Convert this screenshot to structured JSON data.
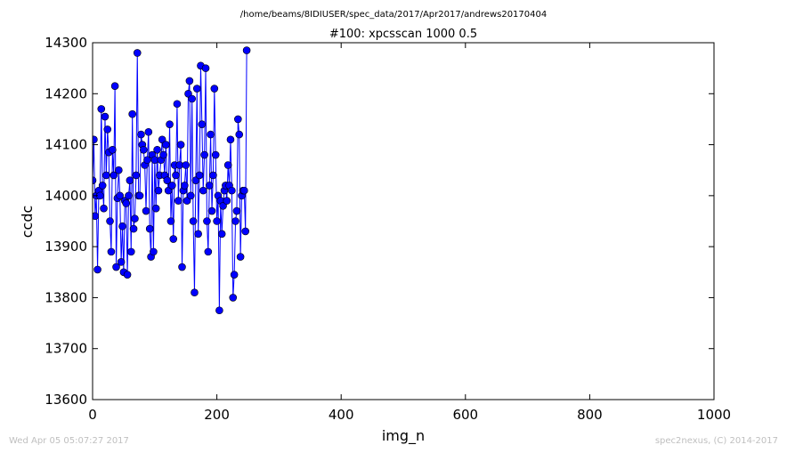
{
  "header": {
    "path": "/home/beams/8IDIUSER/spec_data/2017/Apr2017/andrews20170404"
  },
  "footer": {
    "timestamp": "Wed Apr 05 05:07:27 2017",
    "credit": "spec2nexus, (C) 2014-2017"
  },
  "colors": {
    "line": "#0000ff",
    "marker": "#0000ff",
    "background": "#ffffff"
  },
  "chart_data": {
    "type": "line",
    "title": "#100: xpcsscan 1000 0.5",
    "xlabel": "img_n",
    "ylabel": "ccdc",
    "xlim": [
      0,
      1000
    ],
    "ylim": [
      13600,
      14300
    ],
    "xticks": [
      "0",
      "200",
      "400",
      "600",
      "800",
      "1000"
    ],
    "yticks": [
      "13600",
      "13700",
      "13800",
      "13900",
      "14000",
      "14100",
      "14200",
      "14300"
    ],
    "grid": false,
    "marker": "circle",
    "series": [
      {
        "x_start": 0,
        "x_step": 2,
        "values": [
          14030,
          14110,
          13960,
          14000,
          13855,
          14010,
          14000,
          14170,
          14020,
          13975,
          14155,
          14040,
          14130,
          14085,
          13950,
          13890,
          14090,
          14040,
          14215,
          13860,
          13995,
          14050,
          14000,
          13870,
          13940,
          13850,
          13990,
          13985,
          13845,
          14000,
          14030,
          13890,
          14160,
          13935,
          13955,
          14040,
          14280,
          14000,
          14000,
          14120,
          14100,
          14090,
          14060,
          13970,
          14070,
          14125,
          13935,
          13880,
          14080,
          13890,
          14070,
          13975,
          14090,
          14010,
          14040,
          14070,
          14110,
          14080,
          14040,
          14100,
          14030,
          14010,
          14140,
          13950,
          14020,
          13915,
          14060,
          14040,
          14180,
          13990,
          14060,
          14100,
          13860,
          14010,
          14020,
          14060,
          13990,
          14200,
          14225,
          14000,
          14190,
          13950,
          13810,
          14030,
          14210,
          13925,
          14040,
          14255,
          14140,
          14010,
          14080,
          14250,
          13950,
          13890,
          14020,
          14120,
          13970,
          14040,
          14210,
          14080,
          13950,
          14000,
          13775,
          13990,
          13925,
          13980,
          14010,
          14020,
          13990,
          14060,
          14020,
          14110,
          14010,
          13800,
          13845,
          13950,
          13970,
          14150,
          14120,
          13880,
          14000,
          14010,
          14010,
          13930,
          14285
        ]
      }
    ]
  }
}
